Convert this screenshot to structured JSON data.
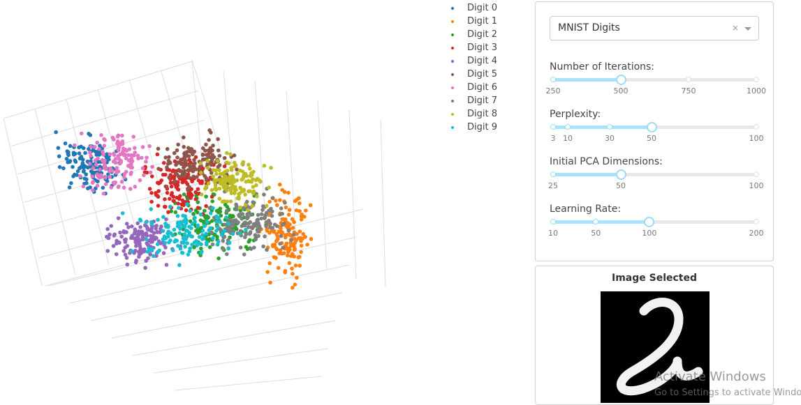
{
  "legend": [
    {
      "name": "Digit 0",
      "color": "#1f77b4"
    },
    {
      "name": "Digit 1",
      "color": "#ff7f0e"
    },
    {
      "name": "Digit 2",
      "color": "#2ca02c"
    },
    {
      "name": "Digit 3",
      "color": "#d62728"
    },
    {
      "name": "Digit 4",
      "color": "#9467bd"
    },
    {
      "name": "Digit 5",
      "color": "#8c564b"
    },
    {
      "name": "Digit 6",
      "color": "#e377c2"
    },
    {
      "name": "Digit 7",
      "color": "#7f7f7f"
    },
    {
      "name": "Digit 8",
      "color": "#bcbd22"
    },
    {
      "name": "Digit 9",
      "color": "#17becf"
    }
  ],
  "dropdown": {
    "value": "MNIST Digits",
    "clear": "×"
  },
  "sliders": [
    {
      "label": "Number of Iterations:",
      "value": 500,
      "marks": [
        250,
        500,
        750,
        1000
      ]
    },
    {
      "label": "Perplexity:",
      "value": 50,
      "marks": [
        3,
        10,
        30,
        50,
        100
      ]
    },
    {
      "label": "Initial PCA Dimensions:",
      "value": 50,
      "marks": [
        25,
        50,
        100
      ]
    },
    {
      "label": "Learning Rate:",
      "value": 100,
      "marks": [
        10,
        50,
        100,
        200
      ]
    }
  ],
  "image_panel": {
    "title": "Image Selected"
  },
  "watermark": {
    "title": "Activate Windows",
    "subtitle": "Go to Settings to activate Windows."
  }
}
